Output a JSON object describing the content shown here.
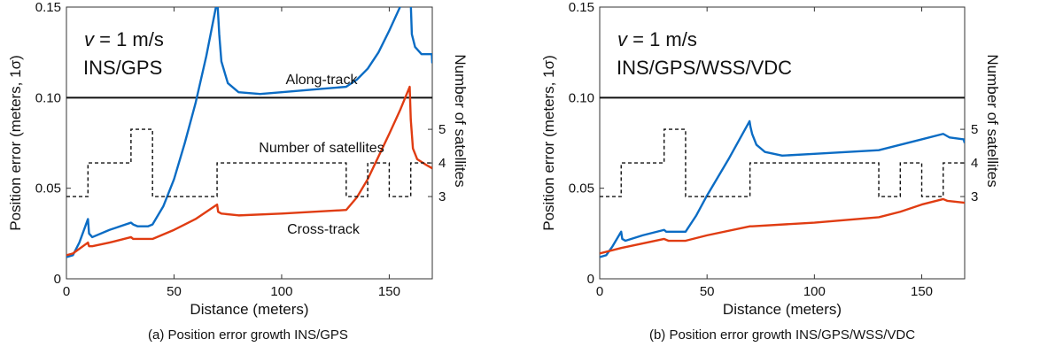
{
  "chart_data": [
    {
      "type": "line",
      "caption": "(a) Position error growth INS/GPS",
      "xlabel": "Distance (meters)",
      "ylabel": "Position error (meters, 1σ)",
      "y2label": "Number of satellites",
      "xlim": [
        0,
        170
      ],
      "ylim": [
        0,
        0.15
      ],
      "xticks": [
        "0",
        "50",
        "100",
        "150"
      ],
      "yticks": [
        "0",
        "0.05",
        "0.10",
        "0.15"
      ],
      "y2ticks": [
        "3",
        "4",
        "5"
      ],
      "grid": false,
      "annotation_speed_var": "v",
      "annotation_speed": "= 1 m/s",
      "annotation_config": "INS/GPS",
      "reference_line": 0.1,
      "labels": {
        "along": "Along-track",
        "sats": "Number of satellites",
        "cross": "Cross-track"
      },
      "series": [
        {
          "name": "Along-track",
          "color": "#0b6cc4",
          "x": [
            0,
            3,
            6,
            10,
            10.5,
            12,
            20,
            30,
            31,
            33,
            38,
            40,
            45,
            50,
            55,
            60,
            65,
            69.8,
            70.2,
            71,
            72,
            75,
            80,
            90,
            100,
            120,
            130,
            135,
            140,
            145,
            150,
            155,
            159.5,
            160,
            160.5,
            162,
            165,
            169.8,
            170
          ],
          "y": [
            0.012,
            0.013,
            0.02,
            0.033,
            0.025,
            0.023,
            0.027,
            0.031,
            0.03,
            0.029,
            0.029,
            0.03,
            0.04,
            0.055,
            0.075,
            0.097,
            0.123,
            0.152,
            0.152,
            0.135,
            0.12,
            0.108,
            0.103,
            0.102,
            0.103,
            0.105,
            0.106,
            0.11,
            0.116,
            0.125,
            0.137,
            0.15,
            0.165,
            0.152,
            0.135,
            0.128,
            0.124,
            0.124,
            0.119
          ]
        },
        {
          "name": "Cross-track",
          "color": "#e03c12",
          "x": [
            0,
            3,
            10,
            10.5,
            12,
            20,
            30,
            31,
            33,
            40,
            50,
            60,
            70,
            70.5,
            72,
            80,
            100,
            130,
            135,
            140,
            150,
            155,
            159.5,
            160,
            161,
            163,
            167,
            170
          ],
          "y": [
            0.013,
            0.014,
            0.02,
            0.018,
            0.018,
            0.02,
            0.023,
            0.022,
            0.022,
            0.022,
            0.027,
            0.033,
            0.041,
            0.037,
            0.036,
            0.035,
            0.036,
            0.038,
            0.045,
            0.055,
            0.08,
            0.093,
            0.106,
            0.088,
            0.072,
            0.066,
            0.063,
            0.061
          ]
        },
        {
          "name": "Number of satellites",
          "color": "#111111",
          "axis": "right",
          "dashed": true,
          "x": [
            0,
            10,
            30,
            40,
            70,
            130,
            140,
            150,
            160,
            170
          ],
          "y": [
            3,
            4,
            5,
            3,
            4,
            3,
            4,
            3,
            4,
            4
          ]
        }
      ]
    },
    {
      "type": "line",
      "caption": "(b) Position error growth INS/GPS/WSS/VDC",
      "xlabel": "Distance (meters)",
      "ylabel": "Position error (meters, 1σ)",
      "y2label": "Number of satellites",
      "xlim": [
        0,
        170
      ],
      "ylim": [
        0,
        0.15
      ],
      "xticks": [
        "0",
        "50",
        "100",
        "150"
      ],
      "yticks": [
        "0",
        "0.05",
        "0.10",
        "0.15"
      ],
      "y2ticks": [
        "3",
        "4",
        "5"
      ],
      "grid": false,
      "annotation_speed_var": "v",
      "annotation_speed": "= 1 m/s",
      "annotation_config": "INS/GPS/WSS/VDC",
      "reference_line": 0.1,
      "series": [
        {
          "name": "Along-track",
          "color": "#0b6cc4",
          "x": [
            0,
            3,
            6,
            10,
            10.5,
            12,
            20,
            30,
            31,
            33,
            40,
            45,
            50,
            60,
            69.8,
            70.2,
            71,
            73,
            77,
            85,
            100,
            130,
            140,
            150,
            160,
            163,
            169.5,
            170
          ],
          "y": [
            0.012,
            0.013,
            0.018,
            0.026,
            0.022,
            0.021,
            0.024,
            0.027,
            0.026,
            0.026,
            0.026,
            0.035,
            0.046,
            0.066,
            0.087,
            0.084,
            0.08,
            0.074,
            0.07,
            0.068,
            0.069,
            0.071,
            0.074,
            0.077,
            0.08,
            0.078,
            0.077,
            0.075
          ]
        },
        {
          "name": "Cross-track",
          "color": "#e03c12",
          "x": [
            0,
            10,
            30,
            32,
            40,
            50,
            70,
            71,
            100,
            130,
            140,
            150,
            160,
            162,
            170
          ],
          "y": [
            0.014,
            0.017,
            0.022,
            0.021,
            0.021,
            0.024,
            0.029,
            0.029,
            0.031,
            0.034,
            0.037,
            0.041,
            0.044,
            0.043,
            0.042
          ]
        },
        {
          "name": "Number of satellites",
          "color": "#111111",
          "axis": "right",
          "dashed": true,
          "x": [
            0,
            10,
            30,
            40,
            70,
            130,
            140,
            150,
            160,
            170
          ],
          "y": [
            3,
            4,
            5,
            3,
            4,
            3,
            4,
            3,
            4,
            4
          ]
        }
      ]
    }
  ]
}
